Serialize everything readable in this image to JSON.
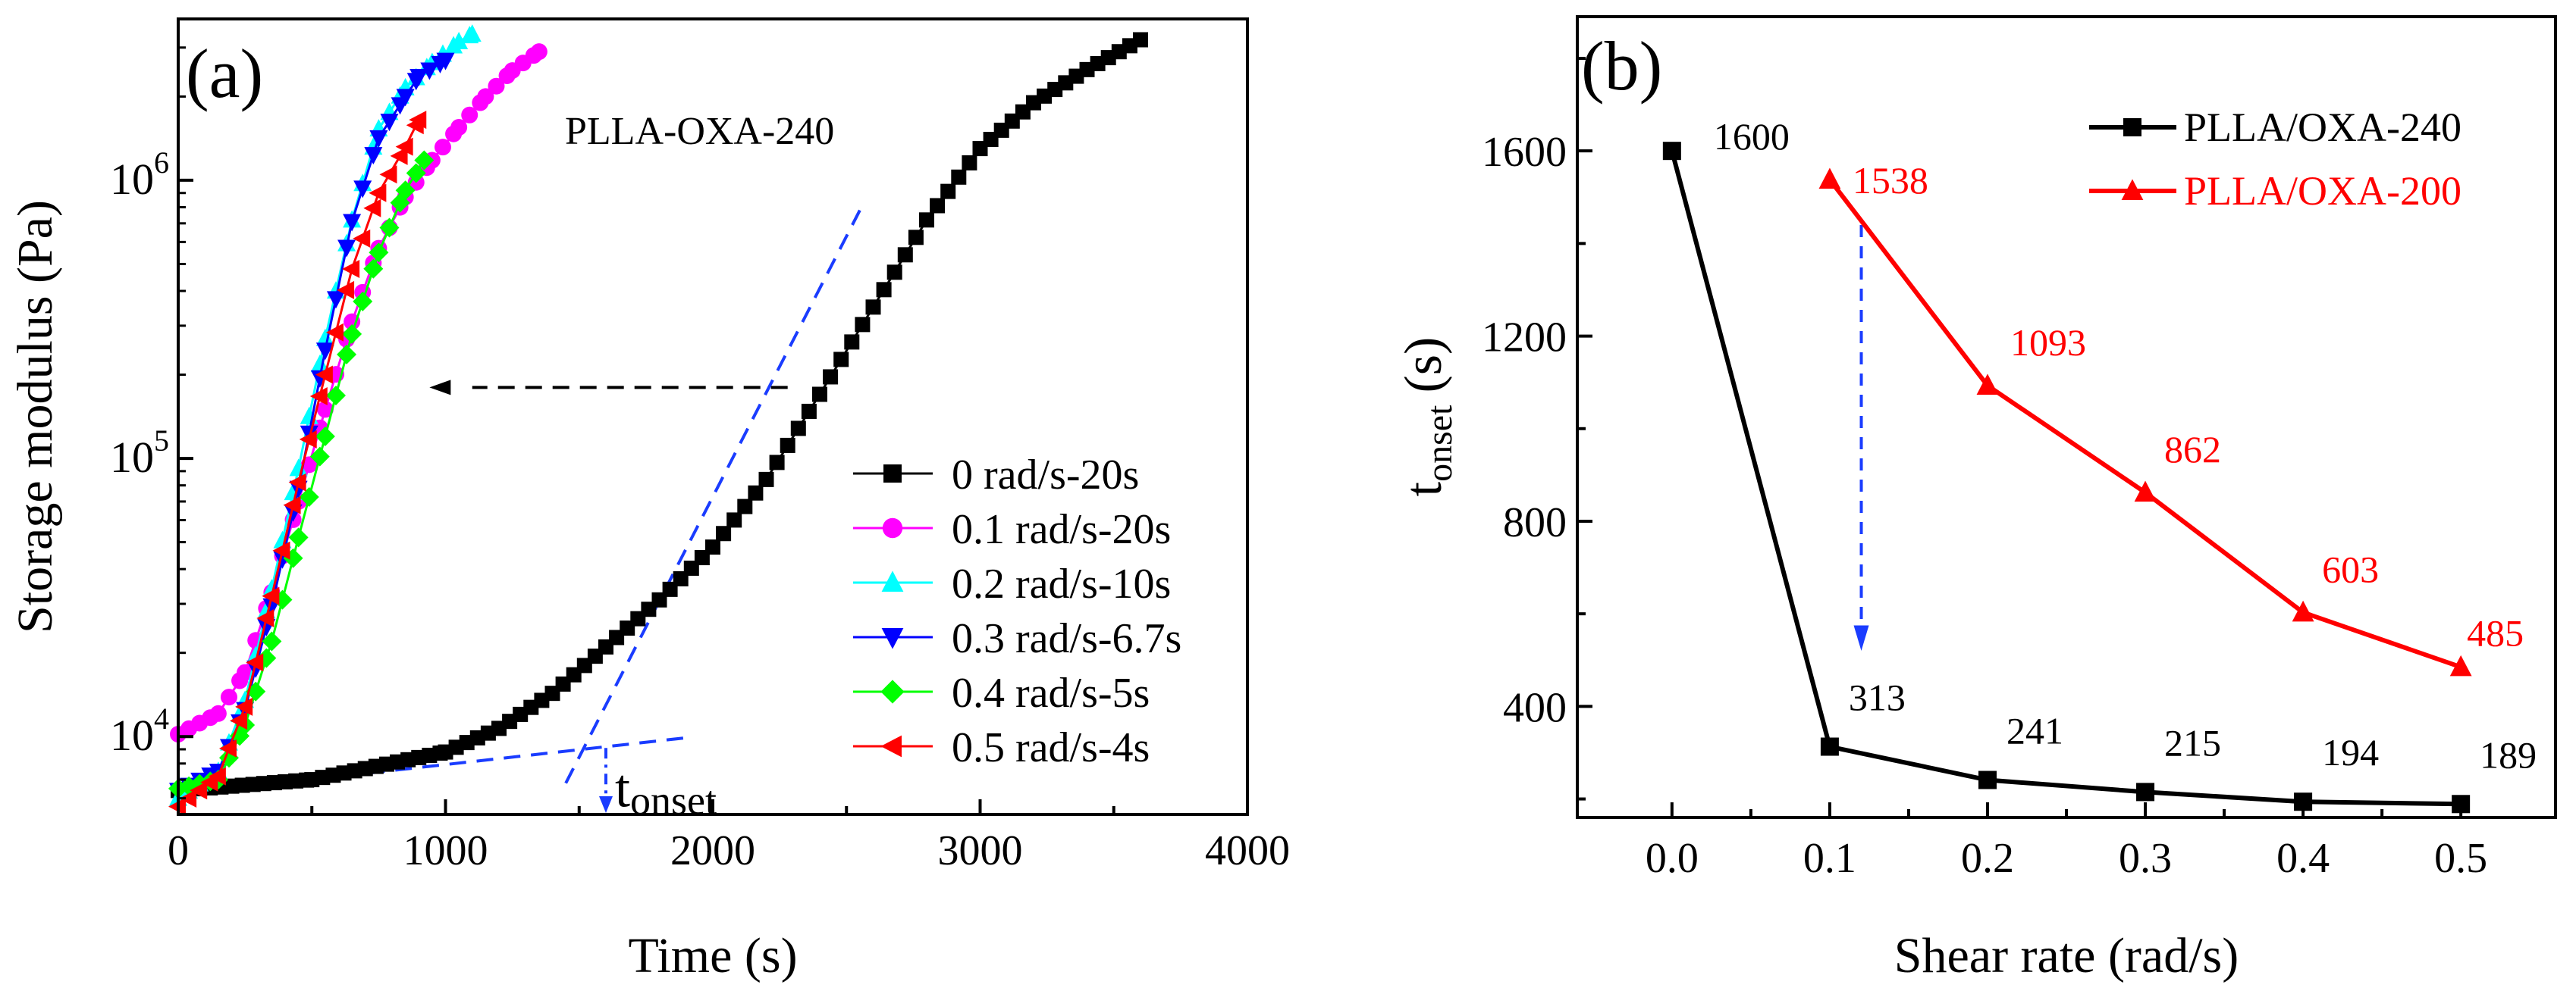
{
  "chart_data": [
    {
      "type": "scatter",
      "panel_label": "(a)",
      "title": "PLLA-OXA-240",
      "xlabel": "Time (s)",
      "ylabel": "Storage modulus (Pa)",
      "xlim": [
        0,
        4000
      ],
      "ylim_log10": [
        3.72,
        6.58
      ],
      "xticks": [
        0,
        1000,
        2000,
        3000,
        4000
      ],
      "xtick_labels": [
        "0",
        "1000",
        "2000",
        "3000",
        "4000"
      ],
      "yticks_log10": [
        4,
        5,
        6
      ],
      "ytick_bases": [
        "10",
        "10",
        "10"
      ],
      "ytick_exps": [
        "4",
        "5",
        "6"
      ],
      "legend": [
        "0 rad/s-20s",
        "0.1 rad/s-20s",
        "0.2 rad/s-10s",
        "0.3 rad/s-6.7s",
        "0.4 rad/s-5s",
        "0.5 rad/s-4s"
      ],
      "annotation": {
        "base": "t",
        "sub": "onset",
        "x": 1600
      },
      "series": [
        {
          "name": "0 rad/s-20s",
          "color": "#000000",
          "marker": "square",
          "points": [
            [
              0,
              6400
            ],
            [
              500,
              7000
            ],
            [
              1000,
              8800
            ],
            [
              1200,
              10700
            ],
            [
              1400,
              14300
            ],
            [
              1600,
              21000
            ],
            [
              1800,
              31000
            ],
            [
              2000,
              48000
            ],
            [
              2200,
              84000
            ],
            [
              2400,
              170000
            ],
            [
              2600,
              350000
            ],
            [
              2800,
              720000
            ],
            [
              3000,
              1300000
            ],
            [
              3200,
              1900000
            ],
            [
              3400,
              2500000
            ],
            [
              3600,
              3200000
            ]
          ]
        },
        {
          "name": "0.1 rad/s-20s",
          "color": "#ff00ff",
          "marker": "circle",
          "points": [
            [
              0,
              10200
            ],
            [
              150,
              12100
            ],
            [
              250,
              17000
            ],
            [
              350,
              33000
            ],
            [
              450,
              70000
            ],
            [
              550,
              150000
            ],
            [
              650,
              310000
            ],
            [
              750,
              570000
            ],
            [
              850,
              870000
            ],
            [
              950,
              1180000
            ],
            [
              1050,
              1550000
            ],
            [
              1150,
              2000000
            ],
            [
              1250,
              2480000
            ],
            [
              1350,
              2900000
            ]
          ]
        },
        {
          "name": "0.2 rad/s-10s",
          "color": "#00ffff",
          "marker": "triangle-up",
          "points": [
            [
              0,
              6000
            ],
            [
              150,
              7500
            ],
            [
              250,
              13500
            ],
            [
              350,
              34000
            ],
            [
              450,
              92000
            ],
            [
              550,
              270000
            ],
            [
              650,
              720000
            ],
            [
              750,
              1530000
            ],
            [
              850,
              2150000
            ],
            [
              950,
              2650000
            ],
            [
              1050,
              3150000
            ],
            [
              1100,
              3350000
            ]
          ]
        },
        {
          "name": "0.3 rad/s-6.7s",
          "color": "#0000ff",
          "marker": "triangle-down",
          "points": [
            [
              0,
              6400
            ],
            [
              150,
              7500
            ],
            [
              250,
              12500
            ],
            [
              350,
              29500
            ],
            [
              450,
              78000
            ],
            [
              550,
              245000
            ],
            [
              650,
              710000
            ],
            [
              750,
              1420000
            ],
            [
              850,
              2000000
            ],
            [
              900,
              2360000
            ],
            [
              1000,
              2700000
            ]
          ]
        },
        {
          "name": "0.4 rad/s-5s",
          "color": "#00ff00",
          "marker": "diamond",
          "points": [
            [
              0,
              6500
            ],
            [
              150,
              7000
            ],
            [
              250,
              11000
            ],
            [
              350,
              22000
            ],
            [
              450,
              52000
            ],
            [
              550,
              120000
            ],
            [
              650,
              280000
            ],
            [
              750,
              550000
            ],
            [
              850,
              920000
            ],
            [
              920,
              1180000
            ]
          ]
        },
        {
          "name": "0.5 rad/s-4s",
          "color": "#ff0000",
          "marker": "triangle-left",
          "points": [
            [
              0,
              5600
            ],
            [
              150,
              7200
            ],
            [
              250,
              12800
            ],
            [
              350,
              32000
            ],
            [
              450,
              82000
            ],
            [
              550,
              200000
            ],
            [
              650,
              480000
            ],
            [
              750,
              900000
            ],
            [
              850,
              1320000
            ],
            [
              900,
              1650000
            ]
          ]
        }
      ]
    },
    {
      "type": "line",
      "panel_label": "(b)",
      "xlabel": "Shear rate (rad/s)",
      "ylabel_base": "t",
      "ylabel_sub": "onset",
      "ylabel_unit": "(s)",
      "xlim": [
        -0.06,
        0.56
      ],
      "ylim": [
        160,
        1890
      ],
      "xticks": [
        0.0,
        0.1,
        0.2,
        0.3,
        0.4,
        0.5
      ],
      "xtick_labels": [
        "0.0",
        "0.1",
        "0.2",
        "0.3",
        "0.4",
        "0.5"
      ],
      "yticks": [
        400,
        800,
        1200,
        1600
      ],
      "ytick_labels": [
        "400",
        "800",
        "1200",
        "1600"
      ],
      "series": [
        {
          "name": "PLLA/OXA-240",
          "color": "#000000",
          "marker": "square",
          "x": [
            0.0,
            0.1,
            0.2,
            0.3,
            0.4,
            0.5
          ],
          "y": [
            1600,
            313,
            241,
            215,
            194,
            189
          ],
          "labels": [
            "1600",
            "313",
            "241",
            "215",
            "194",
            "189"
          ]
        },
        {
          "name": "PLLA/OXA-200",
          "color": "#ff0000",
          "marker": "triangle-up",
          "x": [
            0.1,
            0.2,
            0.3,
            0.4,
            0.5
          ],
          "y": [
            1538,
            1093,
            862,
            603,
            485
          ],
          "labels": [
            "1538",
            "1093",
            "862",
            "603",
            "485"
          ]
        }
      ]
    }
  ]
}
